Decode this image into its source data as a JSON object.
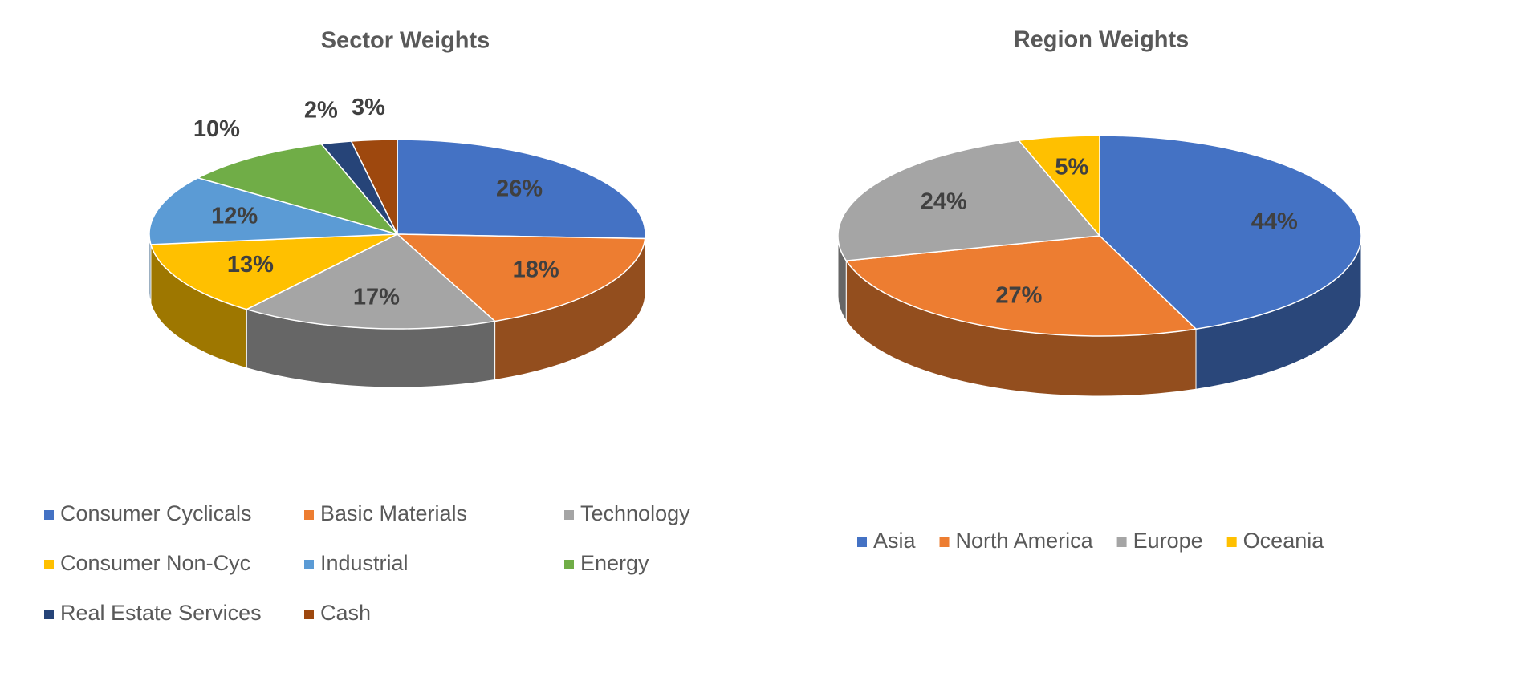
{
  "chart_data": [
    {
      "type": "pie",
      "title": "Sector Weights",
      "categories": [
        "Consumer Cyclicals",
        "Basic Materials",
        "Technology",
        "Consumer Non-Cyc",
        "Industrial",
        "Energy",
        "Real Estate Services",
        "Cash"
      ],
      "values": [
        26,
        18,
        17,
        13,
        12,
        10,
        2,
        3
      ],
      "value_labels": [
        "26%",
        "18%",
        "17%",
        "13%",
        "12%",
        "10%",
        "2%",
        "3%"
      ],
      "colors": [
        "#4472c4",
        "#ed7d31",
        "#a5a5a5",
        "#ffc000",
        "#5b9bd5",
        "#70ad47",
        "#264478",
        "#9e480e"
      ],
      "legend": "bottom"
    },
    {
      "type": "pie",
      "title": "Region Weights",
      "categories": [
        "Asia",
        "North America",
        "Europe",
        "Oceania"
      ],
      "values": [
        44,
        27,
        24,
        5
      ],
      "value_labels": [
        "44%",
        "27%",
        "24%",
        "5%"
      ],
      "colors": [
        "#4472c4",
        "#ed7d31",
        "#a5a5a5",
        "#ffc000"
      ],
      "legend": "bottom"
    }
  ]
}
